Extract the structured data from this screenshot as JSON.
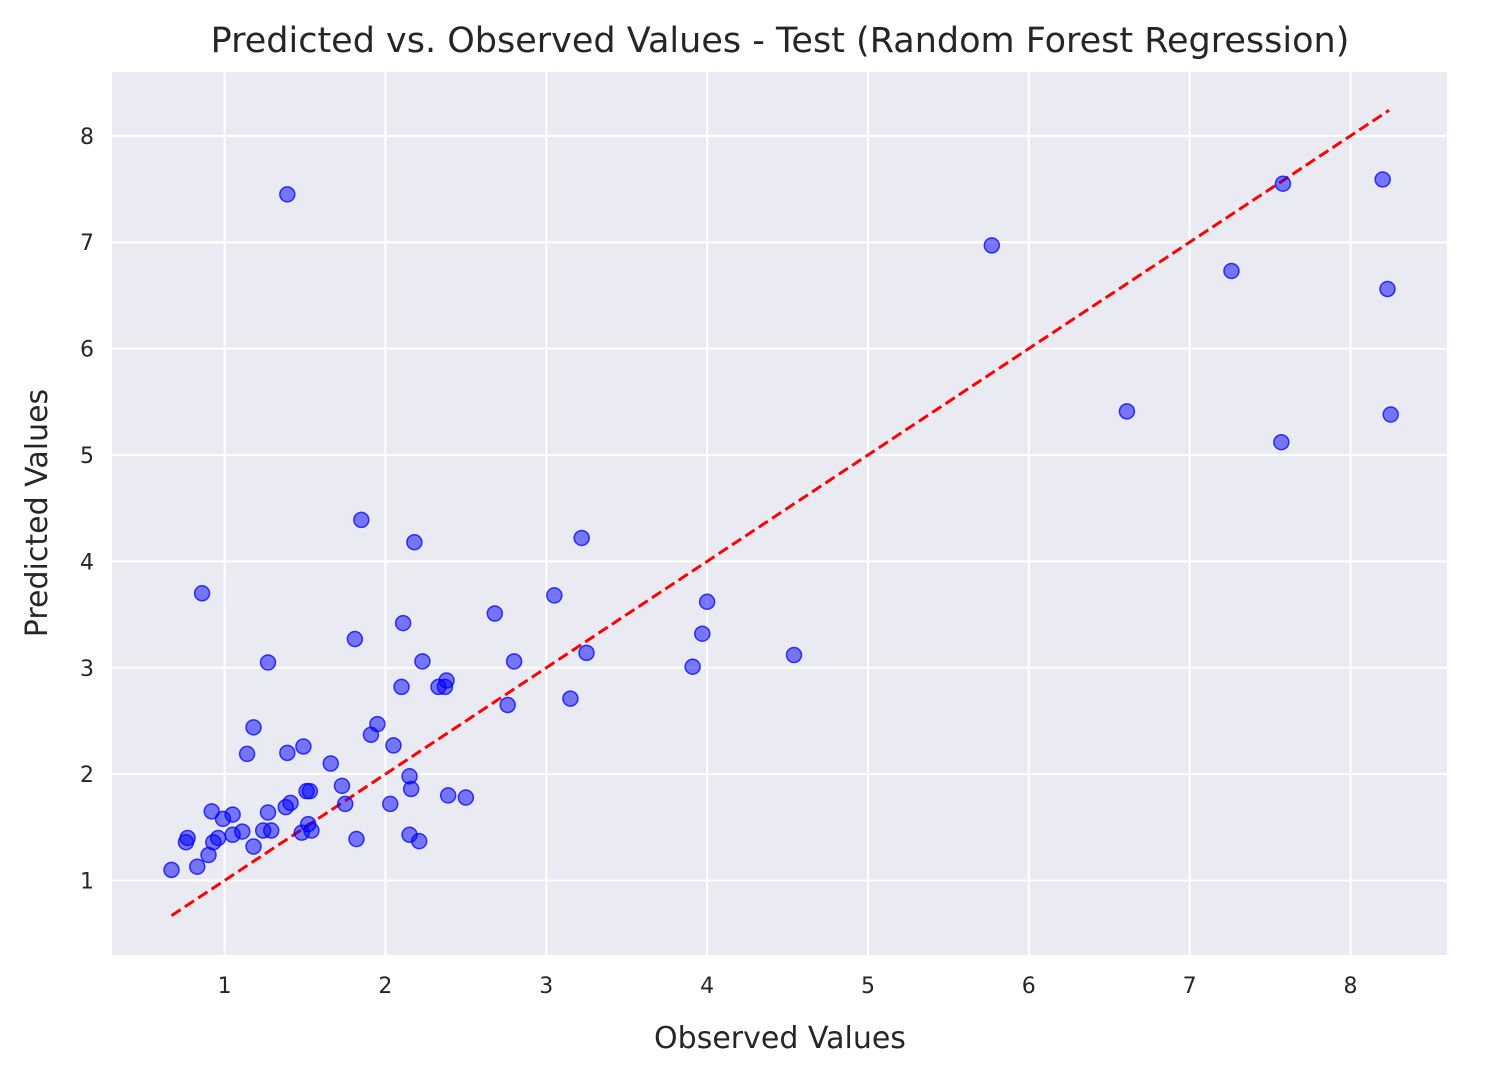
{
  "chart_data": {
    "type": "scatter",
    "title": "Predicted vs. Observed Values - Test (Random Forest Regression)",
    "xlabel": "Observed Values",
    "ylabel": "Predicted Values",
    "xlim": [
      0.3,
      8.6
    ],
    "ylim": [
      0.3,
      8.6
    ],
    "x_ticks": [
      1,
      2,
      3,
      4,
      5,
      6,
      7,
      8
    ],
    "y_ticks": [
      1,
      2,
      3,
      4,
      5,
      6,
      7,
      8
    ],
    "x_tick_labels": [
      "1",
      "2",
      "3",
      "4",
      "5",
      "6",
      "7",
      "8"
    ],
    "y_tick_labels": [
      "1",
      "2",
      "3",
      "4",
      "5",
      "6",
      "7",
      "8"
    ],
    "grid": true,
    "colors": {
      "background": "#eaeaf2",
      "grid": "#ffffff",
      "points": "#0000ff",
      "reference_line": "#ff0000"
    },
    "reference_line": {
      "x": [
        0.67,
        8.24
      ],
      "y": [
        0.67,
        8.24
      ],
      "style": "dashed"
    },
    "points": {
      "x": [
        1.39,
        5.77,
        7.58,
        8.2,
        7.26,
        8.23,
        6.61,
        8.25,
        7.57,
        1.85,
        2.18,
        3.22,
        0.86,
        3.05,
        4.0,
        2.68,
        2.11,
        3.97,
        1.81,
        1.27,
        3.25,
        2.23,
        2.8,
        4.54,
        3.91,
        2.38,
        2.33,
        2.37,
        2.1,
        3.15,
        2.76,
        1.95,
        1.18,
        1.91,
        2.05,
        1.49,
        1.39,
        1.14,
        1.66,
        2.15,
        1.73,
        2.16,
        1.53,
        1.51,
        2.39,
        2.5,
        1.41,
        1.75,
        2.03,
        1.38,
        0.92,
        1.05,
        1.27,
        0.99,
        1.52,
        1.54,
        1.24,
        1.29,
        1.48,
        1.11,
        1.05,
        2.15,
        0.96,
        1.82,
        0.77,
        0.76,
        0.93,
        2.21,
        1.18,
        0.9,
        0.83,
        0.67
      ],
      "y": [
        7.45,
        6.97,
        7.55,
        7.59,
        6.73,
        6.56,
        5.41,
        5.38,
        5.12,
        4.39,
        4.18,
        4.22,
        3.7,
        3.68,
        3.62,
        3.51,
        3.42,
        3.32,
        3.27,
        3.05,
        3.14,
        3.06,
        3.06,
        3.12,
        3.01,
        2.88,
        2.82,
        2.82,
        2.82,
        2.71,
        2.65,
        2.47,
        2.44,
        2.37,
        2.27,
        2.26,
        2.2,
        2.19,
        2.1,
        1.98,
        1.89,
        1.86,
        1.84,
        1.84,
        1.8,
        1.78,
        1.73,
        1.72,
        1.72,
        1.69,
        1.65,
        1.62,
        1.64,
        1.58,
        1.53,
        1.47,
        1.47,
        1.47,
        1.45,
        1.46,
        1.43,
        1.43,
        1.4,
        1.39,
        1.4,
        1.36,
        1.36,
        1.37,
        1.32,
        1.24,
        1.13,
        1.1
      ]
    }
  }
}
